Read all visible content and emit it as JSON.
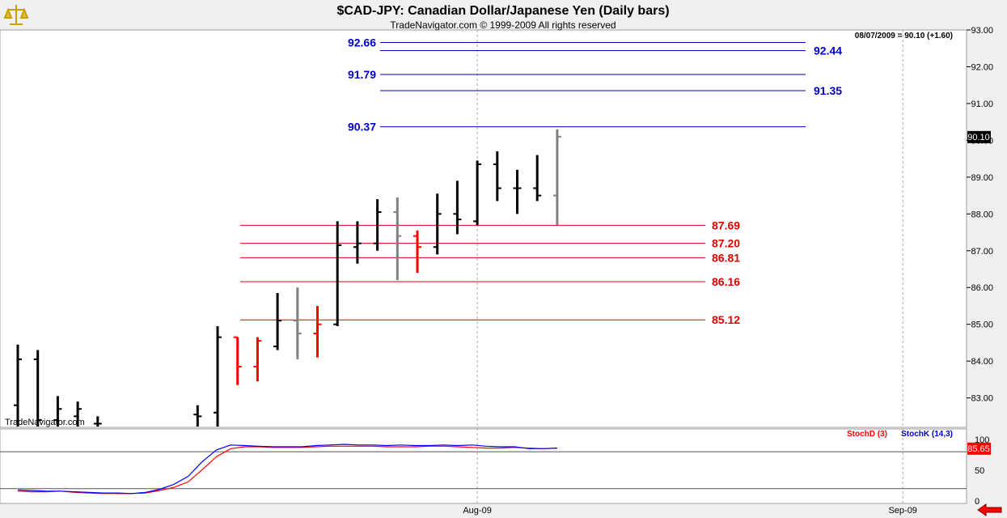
{
  "app": {
    "title": "$CAD-JPY:  Canadian Dollar/Japanese Yen  (Daily bars)",
    "copyright": "TradeNavigator.com © 1999-2009 All rights reserved",
    "last_info": "08/07/2009 = 90.10 (+1.60)",
    "watermark": "TradeNavigator.com",
    "logo_icon": "scales-logo-icon",
    "nav_icon": "left-arrow-icon"
  },
  "colors": {
    "background": "#ffffff",
    "frame": "#f0f0f0",
    "up_bar": "#000000",
    "down_bar": "#ff0000",
    "inside_bar": "#808080",
    "resistance": "#0000c8",
    "support": "#e00000",
    "stoch_d": "#ff0000",
    "stoch_k": "#0000ff"
  },
  "chart_data": [
    {
      "type": "ohlc",
      "title": "$CAD-JPY:  Canadian Dollar/Japanese Yen  (Daily bars)",
      "ylim": [
        82.2,
        93.0
      ],
      "y_ticks": [
        "93.00",
        "92.00",
        "91.00",
        "90.00",
        "89.00",
        "88.00",
        "87.00",
        "86.00",
        "85.00",
        "84.00",
        "83.00"
      ],
      "y_tick_values": [
        93,
        92,
        91,
        90,
        89,
        88,
        87,
        86,
        85,
        84,
        83
      ],
      "last_price_label": "90.10",
      "last_price": 90.1,
      "x_labels": [
        "Aug-09",
        "Sep-09"
      ],
      "x_label_bar_index": [
        23,
        44.3
      ],
      "resistance_levels": [
        {
          "label": "92.66",
          "value": 92.66,
          "label_side": "left"
        },
        {
          "label": "92.44",
          "value": 92.44,
          "label_side": "right"
        },
        {
          "label": "91.79",
          "value": 91.79,
          "label_side": "left"
        },
        {
          "label": "91.35",
          "value": 91.35,
          "label_side": "right"
        },
        {
          "label": "90.37",
          "value": 90.37,
          "label_side": "left"
        }
      ],
      "support_levels": [
        {
          "label": "87.69",
          "value": 87.69
        },
        {
          "label": "87.20",
          "value": 87.2
        },
        {
          "label": "86.81",
          "value": 86.81
        },
        {
          "label": "86.16",
          "value": 86.16
        },
        {
          "label": "85.12",
          "value": 85.12
        }
      ],
      "bars": [
        {
          "o": 82.8,
          "h": 84.45,
          "l": 82.2,
          "c": 84.05,
          "k": "up"
        },
        {
          "o": 84.05,
          "h": 84.3,
          "l": 82.2,
          "c": 82.4,
          "k": "up"
        },
        {
          "o": 82.4,
          "h": 83.05,
          "l": 82.2,
          "c": 82.7,
          "k": "up"
        },
        {
          "o": 82.5,
          "h": 82.9,
          "l": 82.2,
          "c": 82.7,
          "k": "up"
        },
        {
          "o": 82.3,
          "h": 82.5,
          "l": 82.2,
          "c": 82.3,
          "k": "up"
        },
        {
          "o": 82.2,
          "h": 82.2,
          "l": 82.2,
          "c": 82.2,
          "k": "none"
        },
        {
          "o": 82.2,
          "h": 82.2,
          "l": 82.2,
          "c": 82.2,
          "k": "none"
        },
        {
          "o": 82.2,
          "h": 82.2,
          "l": 82.2,
          "c": 82.2,
          "k": "none"
        },
        {
          "o": 82.2,
          "h": 82.2,
          "l": 82.2,
          "c": 82.2,
          "k": "none"
        },
        {
          "o": 82.55,
          "h": 82.8,
          "l": 82.2,
          "c": 82.5,
          "k": "up"
        },
        {
          "o": 82.6,
          "h": 84.95,
          "l": 82.2,
          "c": 84.65,
          "k": "up"
        },
        {
          "o": 84.65,
          "h": 84.65,
          "l": 83.35,
          "c": 83.85,
          "k": "down"
        },
        {
          "o": 83.85,
          "h": 84.65,
          "l": 83.45,
          "c": 84.55,
          "k": "down"
        },
        {
          "o": 84.4,
          "h": 85.85,
          "l": 84.3,
          "c": 85.1,
          "k": "up"
        },
        {
          "o": 85.1,
          "h": 86.0,
          "l": 84.05,
          "c": 84.75,
          "k": "inside"
        },
        {
          "o": 84.75,
          "h": 85.5,
          "l": 84.1,
          "c": 85.0,
          "k": "down"
        },
        {
          "o": 85.0,
          "h": 87.8,
          "l": 84.95,
          "c": 87.15,
          "k": "up"
        },
        {
          "o": 87.1,
          "h": 87.8,
          "l": 86.65,
          "c": 87.2,
          "k": "up"
        },
        {
          "o": 87.2,
          "h": 88.4,
          "l": 87.0,
          "c": 88.05,
          "k": "up"
        },
        {
          "o": 88.05,
          "h": 88.45,
          "l": 86.2,
          "c": 87.4,
          "k": "inside"
        },
        {
          "o": 87.4,
          "h": 87.55,
          "l": 86.4,
          "c": 87.1,
          "k": "down"
        },
        {
          "o": 87.1,
          "h": 88.55,
          "l": 86.9,
          "c": 88.0,
          "k": "up"
        },
        {
          "o": 88.0,
          "h": 88.9,
          "l": 87.45,
          "c": 87.85,
          "k": "up"
        },
        {
          "o": 87.8,
          "h": 89.45,
          "l": 87.7,
          "c": 89.35,
          "k": "up"
        },
        {
          "o": 89.35,
          "h": 89.7,
          "l": 88.35,
          "c": 88.7,
          "k": "up"
        },
        {
          "o": 88.7,
          "h": 89.2,
          "l": 88.0,
          "c": 88.7,
          "k": "up"
        },
        {
          "o": 88.7,
          "h": 89.6,
          "l": 88.35,
          "c": 88.5,
          "k": "up"
        },
        {
          "o": 88.5,
          "h": 90.3,
          "l": 87.7,
          "c": 90.1,
          "k": "inside"
        }
      ]
    },
    {
      "type": "line",
      "title": "Stochastic",
      "ylim": [
        -4,
        117
      ],
      "y_ticks": [
        "100",
        "50",
        "0"
      ],
      "y_tick_values": [
        100,
        50,
        0
      ],
      "h_lines": [
        80,
        20
      ],
      "last_value_label": "85.65",
      "last_value": 85.65,
      "series": [
        {
          "name": "StochD (3)",
          "color": "#ff0000",
          "values": [
            16,
            15,
            15,
            16,
            14,
            13,
            12,
            12,
            12,
            13,
            17,
            22,
            31,
            51,
            72,
            85,
            88,
            88,
            87,
            87,
            87,
            88,
            89,
            89,
            89,
            89,
            88,
            88,
            88,
            89,
            89,
            88,
            87,
            86,
            86,
            87,
            86,
            85,
            86
          ]
        },
        {
          "name": "StochK (14,3)",
          "color": "#0000ff",
          "values": [
            18,
            17,
            16,
            16,
            15,
            14,
            13,
            13,
            12,
            14,
            19,
            27,
            40,
            64,
            83,
            91,
            90,
            89,
            88,
            88,
            88,
            90,
            91,
            92,
            91,
            91,
            90,
            91,
            90,
            90,
            91,
            90,
            91,
            89,
            88,
            88,
            85,
            85,
            86
          ]
        }
      ]
    }
  ]
}
